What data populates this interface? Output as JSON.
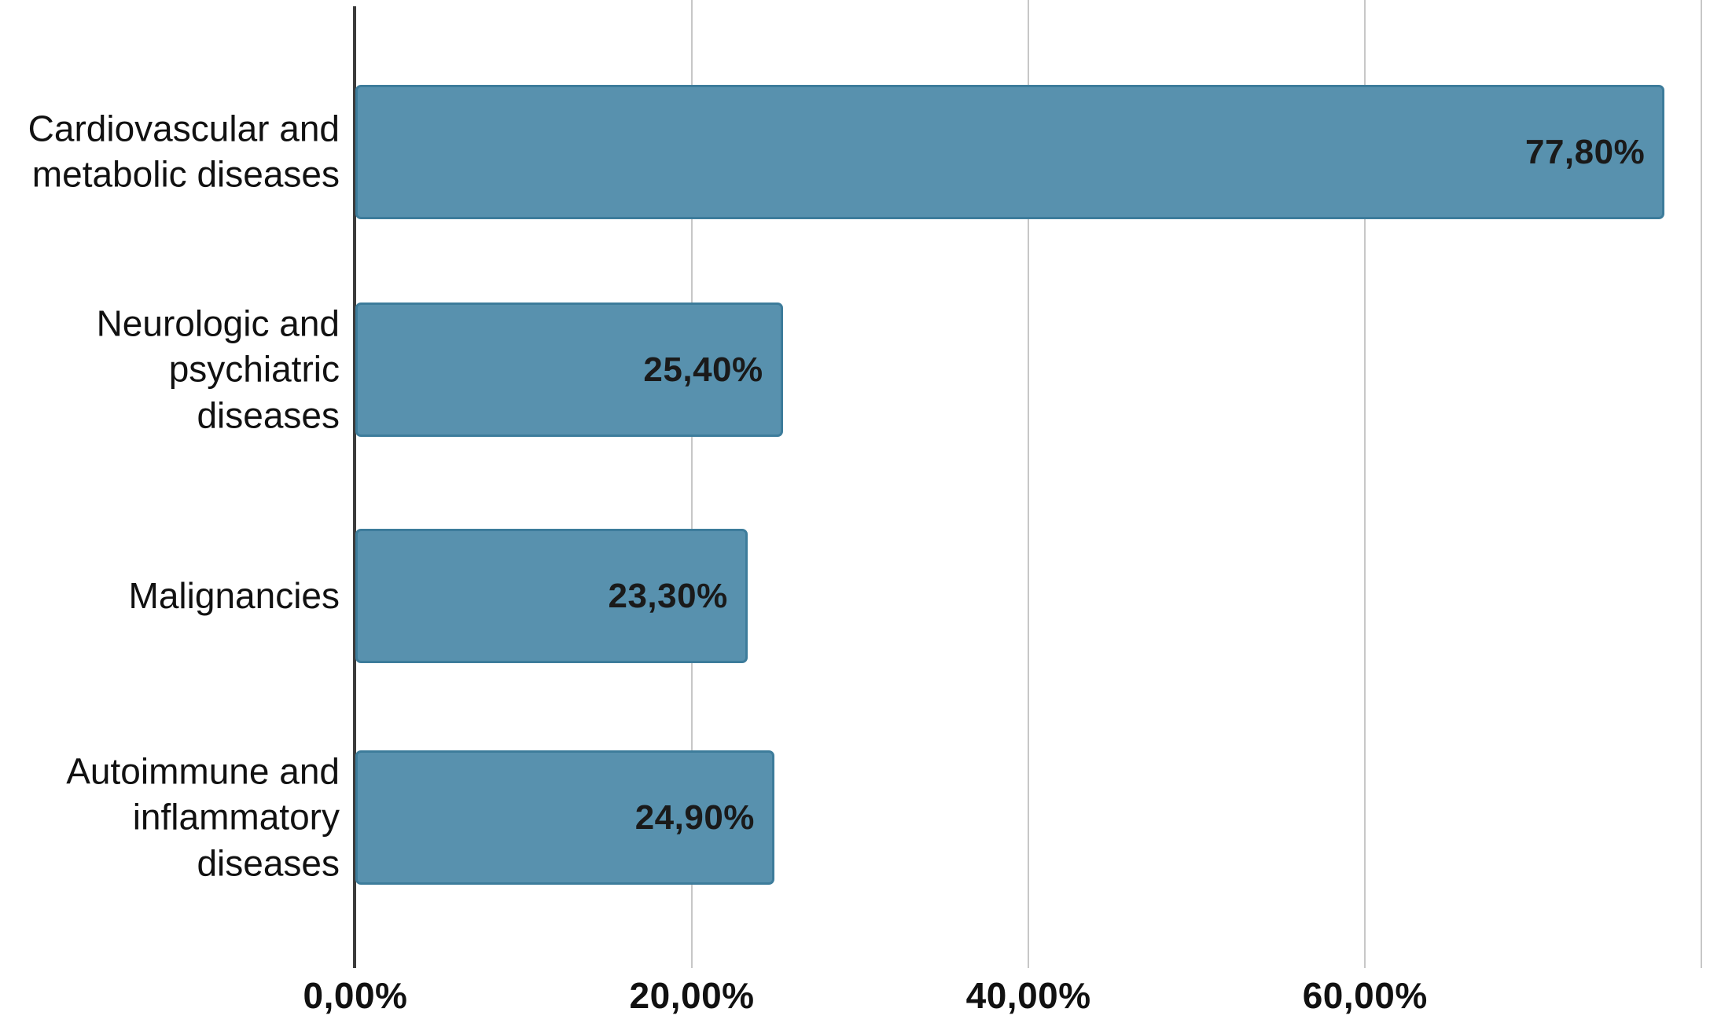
{
  "chart_data": {
    "type": "bar",
    "orientation": "horizontal",
    "title": "",
    "xlabel": "",
    "ylabel": "",
    "categories": [
      "Cardiovascular and metabolic diseases",
      "Neurologic and psychiatric diseases",
      "Malignancies",
      "Autoimmune and inflammatory diseases"
    ],
    "category_lines": [
      [
        "Cardiovascular and",
        "metabolic diseases"
      ],
      [
        "Neurologic and",
        "psychiatric",
        "diseases"
      ],
      [
        "Malignancies"
      ],
      [
        "Autoimmune and",
        "inflammatory",
        "diseases"
      ]
    ],
    "values": [
      77.8,
      25.4,
      23.3,
      24.9
    ],
    "value_labels": [
      "77,80%",
      "25,40%",
      "23,30%",
      "24,90%"
    ],
    "x_ticks": [
      {
        "value": 0,
        "label": "0,00%"
      },
      {
        "value": 20,
        "label": "20,00%"
      },
      {
        "value": 40,
        "label": "40,00%"
      },
      {
        "value": 60,
        "label": "60,00%"
      }
    ],
    "grid_values": [
      20,
      40,
      60,
      80
    ],
    "xlim": [
      0,
      80.5
    ],
    "grid": true,
    "legend": false,
    "colors": {
      "bar_fill": "#5891ae",
      "bar_border": "#3d7c9b",
      "gridline": "#c7c7c7",
      "axis": "#3b3b3b",
      "category_text": "#111111",
      "value_text": "#1a1a1a",
      "tick_text": "#111111",
      "background": "#ffffff"
    }
  }
}
